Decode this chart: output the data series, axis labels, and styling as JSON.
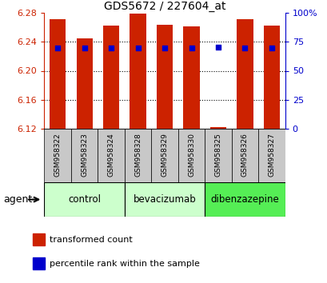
{
  "title": "GDS5672 / 227604_at",
  "samples": [
    "GSM958322",
    "GSM958323",
    "GSM958324",
    "GSM958328",
    "GSM958329",
    "GSM958330",
    "GSM958325",
    "GSM958326",
    "GSM958327"
  ],
  "bar_values": [
    6.271,
    6.245,
    6.262,
    6.279,
    6.263,
    6.261,
    6.122,
    6.271,
    6.262
  ],
  "percentile_values": [
    6.231,
    6.231,
    6.231,
    6.231,
    6.231,
    6.231,
    6.232,
    6.231,
    6.231
  ],
  "bar_bottom": 6.12,
  "ylim": [
    6.12,
    6.28
  ],
  "y_ticks_left": [
    6.12,
    6.16,
    6.2,
    6.24,
    6.28
  ],
  "y_ticks_right": [
    0,
    25,
    50,
    75,
    100
  ],
  "bar_color": "#cc2200",
  "dot_color": "#0000cc",
  "bar_width": 0.6,
  "groups": [
    {
      "label": "control",
      "indices": [
        0,
        1,
        2
      ],
      "color": "#ccffcc"
    },
    {
      "label": "bevacizumab",
      "indices": [
        3,
        4,
        5
      ],
      "color": "#ccffcc"
    },
    {
      "label": "dibenzazepine",
      "indices": [
        6,
        7,
        8
      ],
      "color": "#55ee55"
    }
  ],
  "legend_items": [
    {
      "label": "transformed count",
      "color": "#cc2200"
    },
    {
      "label": "percentile rank within the sample",
      "color": "#0000cc"
    }
  ],
  "agent_label": "agent"
}
